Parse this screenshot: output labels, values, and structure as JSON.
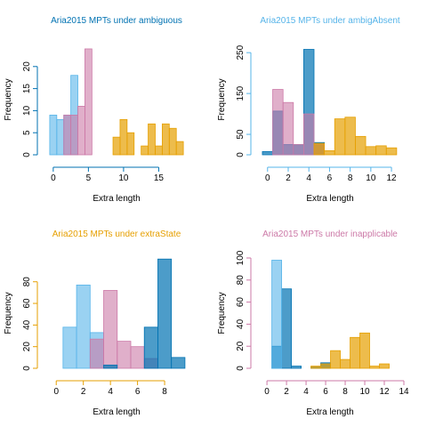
{
  "chart_data": [
    {
      "type": "histogram",
      "title": "Aria2015 MPTs under ambiguous",
      "title_color": "#0072B2",
      "xlabel": "Extra length",
      "ylabel": "Frequency",
      "xlim": [
        -1.5,
        19.5
      ],
      "ylim": [
        0,
        25
      ],
      "xticks": [
        0,
        5,
        10,
        15
      ],
      "yticks": [
        0,
        5,
        10,
        15,
        20
      ],
      "series": [
        {
          "color": "#56B4E999",
          "bins": [
            -0.5,
            0.5,
            1.5,
            2.5,
            3.5
          ],
          "values": [
            9,
            8,
            9,
            18
          ]
        },
        {
          "color": "#CC79A799",
          "bins": [
            1.5,
            2.5,
            3.5,
            4.5,
            5.5
          ],
          "values": [
            9,
            9,
            11,
            24
          ]
        },
        {
          "color": "#E69F00B3",
          "bins": [
            8.5,
            9.5,
            10.5,
            11.5,
            12.5,
            13.5,
            14.5,
            15.5,
            16.5,
            17.5,
            18.5
          ],
          "values": [
            4,
            8,
            5,
            0,
            2,
            7,
            2,
            7,
            6,
            3
          ]
        }
      ]
    },
    {
      "type": "histogram",
      "title": "Aria2015 MPTs under ambigAbsent",
      "title_color": "#56B4E9",
      "xlabel": "Extra length",
      "ylabel": "Frequency",
      "xlim": [
        -1.1,
        13.2
      ],
      "ylim": [
        0,
        270
      ],
      "xticks": [
        0,
        2,
        4,
        6,
        8,
        10,
        12
      ],
      "yticks": [
        0,
        50,
        150,
        250
      ],
      "series": [
        {
          "color": "#0072B2B3",
          "bins": [
            -0.5,
            0.5,
            1.5,
            2.5,
            3.5,
            4.5,
            5.5
          ],
          "values": [
            8,
            107,
            25,
            25,
            258,
            30
          ]
        },
        {
          "color": "#CC79A799",
          "bins": [
            0.5,
            1.5,
            2.5,
            3.5,
            4.5,
            5.5
          ],
          "values": [
            160,
            128,
            25,
            100,
            25
          ]
        },
        {
          "color": "#E69F00B3",
          "bins": [
            4.5,
            5.5,
            6.5,
            7.5,
            8.5,
            9.5,
            10.5,
            11.5,
            12.5
          ],
          "values": [
            28,
            10,
            88,
            92,
            45,
            20,
            22,
            17
          ]
        }
      ]
    },
    {
      "type": "histogram",
      "title": "Aria2015 MPTs under extraState",
      "title_color": "#E69F00",
      "xlabel": "Extra length",
      "ylabel": "Frequency",
      "xlim": [
        -1,
        9.9
      ],
      "ylim": [
        0,
        102
      ],
      "xticks": [
        0,
        2,
        4,
        6,
        8
      ],
      "yticks": [
        0,
        20,
        40,
        60,
        80
      ],
      "series": [
        {
          "color": "#56B4E999",
          "bins": [
            -0.5,
            0.5,
            1.5,
            2.5,
            3.5
          ],
          "values": [
            0,
            38,
            77,
            33
          ]
        },
        {
          "color": "#CC79A799",
          "bins": [
            2.5,
            3.5,
            4.5,
            5.5,
            6.5,
            7.5
          ],
          "values": [
            27,
            72,
            25,
            20,
            9
          ]
        },
        {
          "color": "#0072B2B3",
          "bins": [
            3.5,
            4.5,
            5.5,
            6.5,
            7.5,
            8.5,
            9.5
          ],
          "values": [
            3,
            0,
            0,
            38,
            101,
            10
          ]
        }
      ]
    },
    {
      "type": "histogram",
      "title": "Aria2015 MPTs under inapplicable",
      "title_color": "#CC79A7",
      "xlabel": "Extra length",
      "ylabel": "Frequency",
      "xlim": [
        -1.1,
        14
      ],
      "ylim": [
        0,
        100
      ],
      "xticks": [
        0,
        2,
        4,
        6,
        8,
        10,
        12,
        14
      ],
      "yticks": [
        0,
        20,
        40,
        60,
        80,
        100
      ],
      "series": [
        {
          "color": "#0072B2B3",
          "bins": [
            0.5,
            1.5,
            2.5,
            3.5,
            4.5,
            5.5,
            6.5
          ],
          "values": [
            20,
            72,
            2,
            0,
            1,
            5
          ]
        },
        {
          "color": "#E69F00B3",
          "bins": [
            -0.5,
            0.5,
            1.5,
            2.5,
            3.5,
            4.5,
            5.5,
            6.5,
            7.5,
            8.5,
            9.5,
            10.5,
            11.5,
            12.5
          ],
          "values": [
            0,
            0,
            0,
            0,
            0,
            2,
            4,
            16,
            8,
            28,
            32,
            2,
            4
          ]
        },
        {
          "color": "#56B4E999",
          "bins": [
            0.5,
            1.5
          ],
          "values": [
            98
          ]
        }
      ]
    }
  ]
}
